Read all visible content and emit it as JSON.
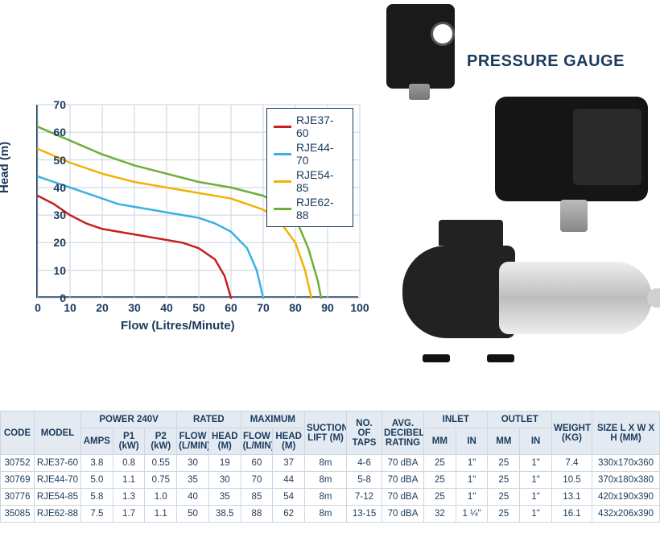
{
  "labels": {
    "pressure_gauge": "PRESSURE GAUGE"
  },
  "chart": {
    "type": "line",
    "x_label": "Flow (Litres/Minute)",
    "y_label": "Head (m)",
    "label_fontsize": 15,
    "xlim": [
      0,
      100
    ],
    "ylim": [
      0,
      70
    ],
    "xtick_step": 10,
    "ytick_step": 10,
    "background_color": "#ffffff",
    "axis_color": "#1a3a5c",
    "grid_color": "#c9d3e0",
    "line_width": 2.5,
    "series": [
      {
        "name": "RJE37-60",
        "color": "#c81e1e",
        "points": [
          [
            0,
            37
          ],
          [
            5,
            34
          ],
          [
            10,
            30
          ],
          [
            15,
            27
          ],
          [
            20,
            25
          ],
          [
            25,
            24
          ],
          [
            30,
            23
          ],
          [
            35,
            22
          ],
          [
            40,
            21
          ],
          [
            45,
            20
          ],
          [
            50,
            18
          ],
          [
            55,
            14
          ],
          [
            58,
            8
          ],
          [
            60,
            0
          ]
        ]
      },
      {
        "name": "RJE44-70",
        "color": "#39b1e0",
        "points": [
          [
            0,
            44
          ],
          [
            5,
            42
          ],
          [
            10,
            40
          ],
          [
            15,
            38
          ],
          [
            20,
            36
          ],
          [
            25,
            34
          ],
          [
            30,
            33
          ],
          [
            35,
            32
          ],
          [
            40,
            31
          ],
          [
            45,
            30
          ],
          [
            50,
            29
          ],
          [
            55,
            27
          ],
          [
            60,
            24
          ],
          [
            65,
            18
          ],
          [
            68,
            10
          ],
          [
            70,
            0
          ]
        ]
      },
      {
        "name": "RJE54-85",
        "color": "#f2b200",
        "points": [
          [
            0,
            54
          ],
          [
            10,
            49
          ],
          [
            20,
            45
          ],
          [
            30,
            42
          ],
          [
            40,
            40
          ],
          [
            50,
            38
          ],
          [
            60,
            36
          ],
          [
            65,
            34
          ],
          [
            70,
            32
          ],
          [
            75,
            28
          ],
          [
            80,
            20
          ],
          [
            83,
            10
          ],
          [
            85,
            0
          ]
        ]
      },
      {
        "name": "RJE62-88",
        "color": "#6fae3a",
        "points": [
          [
            0,
            62
          ],
          [
            10,
            57
          ],
          [
            20,
            52
          ],
          [
            30,
            48
          ],
          [
            40,
            45
          ],
          [
            50,
            42
          ],
          [
            60,
            40
          ],
          [
            70,
            37
          ],
          [
            75,
            34
          ],
          [
            80,
            29
          ],
          [
            84,
            18
          ],
          [
            87,
            6
          ],
          [
            88,
            0
          ]
        ]
      }
    ]
  },
  "table": {
    "header_groups": [
      {
        "label": "CODE",
        "colspan": 1,
        "rowspan": 2,
        "w": 42
      },
      {
        "label": "MODEL",
        "colspan": 1,
        "rowspan": 2,
        "w": 58
      },
      {
        "label": "POWER 240V",
        "colspan": 3,
        "rowspan": 1
      },
      {
        "label": "RATED",
        "colspan": 2,
        "rowspan": 1
      },
      {
        "label": "MAXIMUM",
        "colspan": 2,
        "rowspan": 1
      },
      {
        "label": "SUCTION LIFT (M)",
        "colspan": 1,
        "rowspan": 2,
        "w": 52
      },
      {
        "label": "NO. OF TAPS",
        "colspan": 1,
        "rowspan": 2,
        "w": 44
      },
      {
        "label": "AVG. DECIBEL RATING",
        "colspan": 1,
        "rowspan": 2,
        "w": 52
      },
      {
        "label": "INLET",
        "colspan": 2,
        "rowspan": 1
      },
      {
        "label": "OUTLET",
        "colspan": 2,
        "rowspan": 1
      },
      {
        "label": "WEIGHT (KG)",
        "colspan": 1,
        "rowspan": 2,
        "w": 50
      },
      {
        "label": "SIZE L X W X H (MM)",
        "colspan": 1,
        "rowspan": 2,
        "w": 84
      }
    ],
    "sub_headers": [
      {
        "label": "AMPS",
        "w": 38
      },
      {
        "label": "P1 (kW)",
        "w": 36
      },
      {
        "label": "P2 (kW)",
        "w": 36
      },
      {
        "label": "FLOW (L/MIN)",
        "w": 48
      },
      {
        "label": "HEAD (M)",
        "w": 38
      },
      {
        "label": "FLOW (L/MIN)",
        "w": 48
      },
      {
        "label": "HEAD (M)",
        "w": 38
      },
      {
        "label": "MM",
        "w": 26
      },
      {
        "label": "IN",
        "w": 26
      },
      {
        "label": "MM",
        "w": 26
      },
      {
        "label": "IN",
        "w": 26
      }
    ],
    "rows": [
      [
        "30752",
        "RJE37-60",
        "3.8",
        "0.8",
        "0.55",
        "30",
        "19",
        "60",
        "37",
        "8m",
        "4-6",
        "70 dBA",
        "25",
        "1\"",
        "25",
        "1\"",
        "7.4",
        "330x170x360"
      ],
      [
        "30769",
        "RJE44-70",
        "5.0",
        "1.1",
        "0.75",
        "35",
        "30",
        "70",
        "44",
        "8m",
        "5-8",
        "70 dBA",
        "25",
        "1\"",
        "25",
        "1\"",
        "10.5",
        "370x180x380"
      ],
      [
        "30776",
        "RJE54-85",
        "5.8",
        "1.3",
        "1.0",
        "40",
        "35",
        "85",
        "54",
        "8m",
        "7-12",
        "70 dBA",
        "25",
        "1\"",
        "25",
        "1\"",
        "13.1",
        "420x190x390"
      ],
      [
        "35085",
        "RJE62-88",
        "7.5",
        "1.7",
        "1.1",
        "50",
        "38.5",
        "88",
        "62",
        "8m",
        "13-15",
        "70 dBA",
        "32",
        "1 ¼\"",
        "25",
        "1\"",
        "16.1",
        "432x206x390"
      ]
    ]
  }
}
